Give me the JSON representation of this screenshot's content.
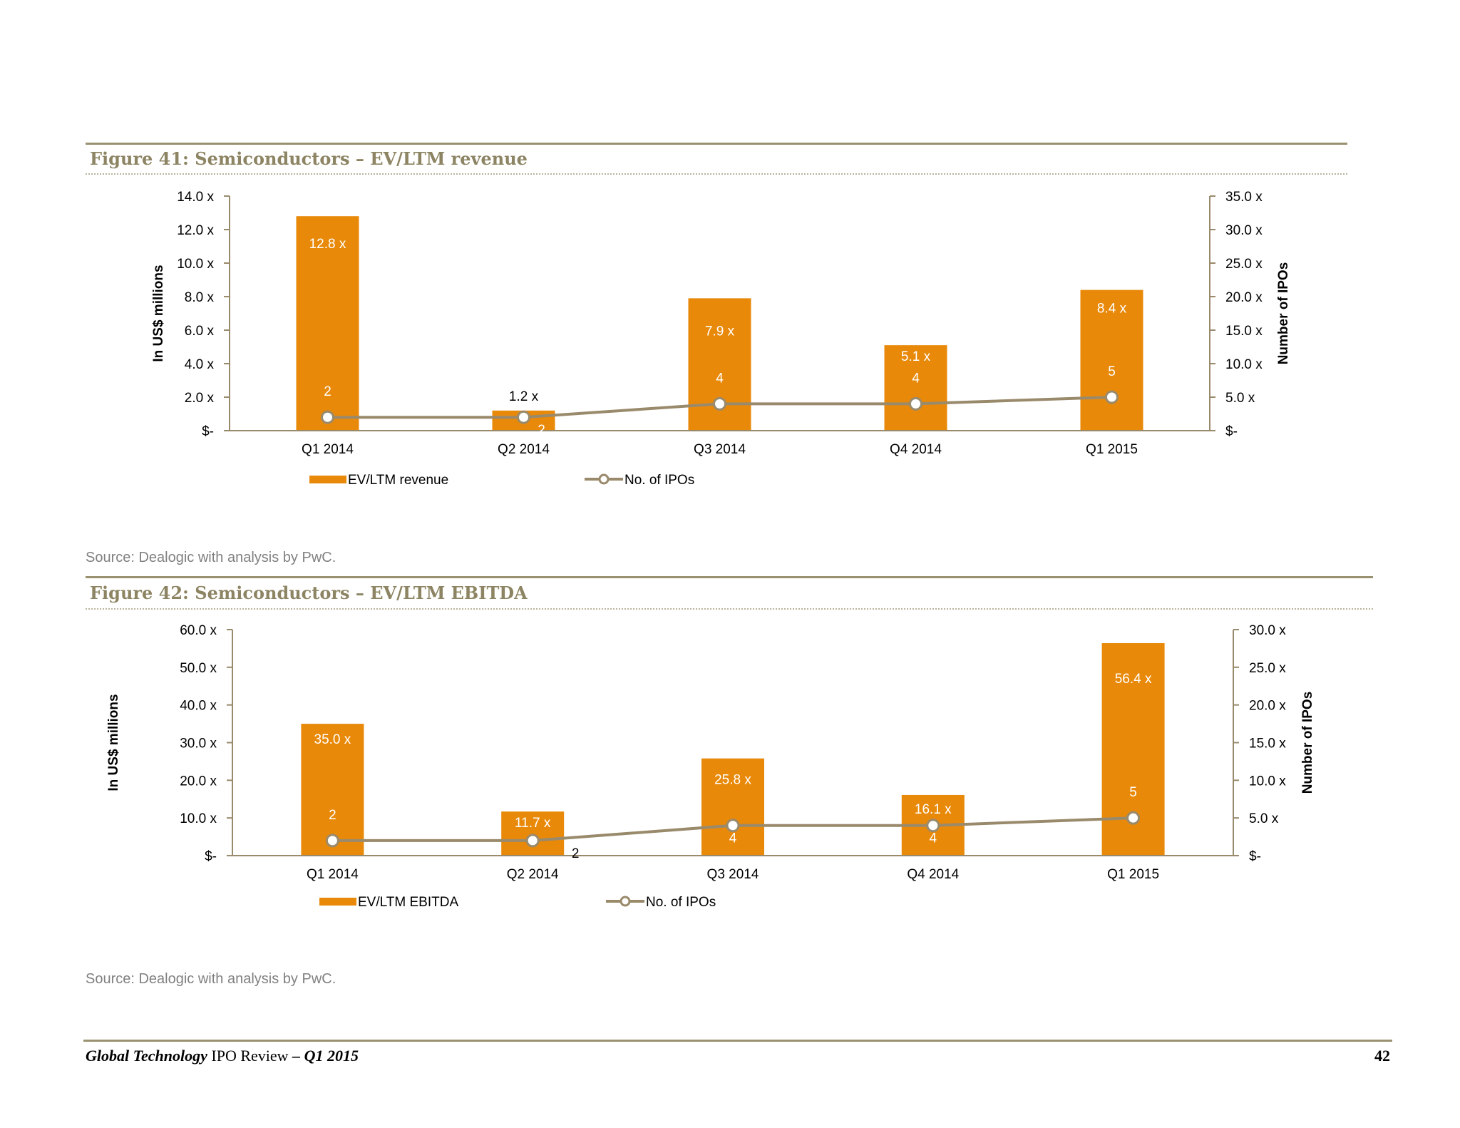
{
  "colors": {
    "bar": "#e8890a",
    "line": "#9a8a6c",
    "rule": "#9a9170",
    "title": "#8c8462"
  },
  "figures": [
    {
      "title": "Figure 41: Semiconductors – EV/LTM revenue",
      "source": "Source: Dealogic with analysis by PwC.",
      "chart_data": {
        "type": "bar",
        "categories": [
          "Q1 2014",
          "Q2 2014",
          "Q3 2014",
          "Q4 2014",
          "Q1 2015"
        ],
        "series": [
          {
            "name": "EV/LTM revenue",
            "type": "bar",
            "axis": "left",
            "values": [
              12.8,
              1.2,
              7.9,
              5.1,
              8.4
            ],
            "labels": [
              "12.8 x",
              "1.2 x",
              "7.9 x",
              "5.1 x",
              "8.4 x"
            ]
          },
          {
            "name": "No. of IPOs",
            "type": "line",
            "axis": "right",
            "values": [
              2,
              2,
              4,
              4,
              5
            ],
            "labels": [
              "2",
              "2",
              "4",
              "4",
              "5"
            ]
          }
        ],
        "ylabel": "In US$ millions",
        "y2label": "Number of IPOs",
        "ylim": [
          0,
          14
        ],
        "y2lim": [
          0,
          35
        ],
        "yticks": [
          "$-",
          "2.0 x",
          "4.0 x",
          "6.0 x",
          "8.0 x",
          "10.0 x",
          "12.0 x",
          "14.0 x"
        ],
        "y2ticks": [
          "$-",
          "5.0 x",
          "10.0 x",
          "15.0 x",
          "20.0 x",
          "25.0 x",
          "30.0 x",
          "35.0 x"
        ],
        "grid": false,
        "legend": "bottom"
      }
    },
    {
      "title": "Figure 42: Semiconductors – EV/LTM EBITDA",
      "source": "Source: Dealogic with analysis by PwC.",
      "chart_data": {
        "type": "bar",
        "categories": [
          "Q1 2014",
          "Q2 2014",
          "Q3 2014",
          "Q4 2014",
          "Q1 2015"
        ],
        "series": [
          {
            "name": "EV/LTM EBITDA",
            "type": "bar",
            "axis": "left",
            "values": [
              35.0,
              11.7,
              25.8,
              16.1,
              56.4
            ],
            "labels": [
              "35.0 x",
              "11.7 x",
              "25.8 x",
              "16.1 x",
              "56.4 x"
            ]
          },
          {
            "name": "No. of IPOs",
            "type": "line",
            "axis": "right",
            "values": [
              2,
              2,
              4,
              4,
              5
            ],
            "labels": [
              "2",
              "2",
              "4",
              "4",
              "5"
            ]
          }
        ],
        "ylabel": "In US$ millions",
        "y2label": "Number of IPOs",
        "ylim": [
          0,
          60
        ],
        "y2lim": [
          0,
          30
        ],
        "yticks": [
          "$-",
          "10.0 x",
          "20.0 x",
          "30.0 x",
          "40.0 x",
          "50.0 x",
          "60.0 x"
        ],
        "y2ticks": [
          "$-",
          "5.0 x",
          "10.0 x",
          "15.0 x",
          "20.0 x",
          "25.0 x",
          "30.0 x"
        ],
        "grid": false,
        "legend": "bottom"
      }
    }
  ],
  "footer": {
    "brand": "Global Technology",
    "title": "IPO Review",
    "separator": "–",
    "period": "Q1 2015",
    "page": "42"
  }
}
